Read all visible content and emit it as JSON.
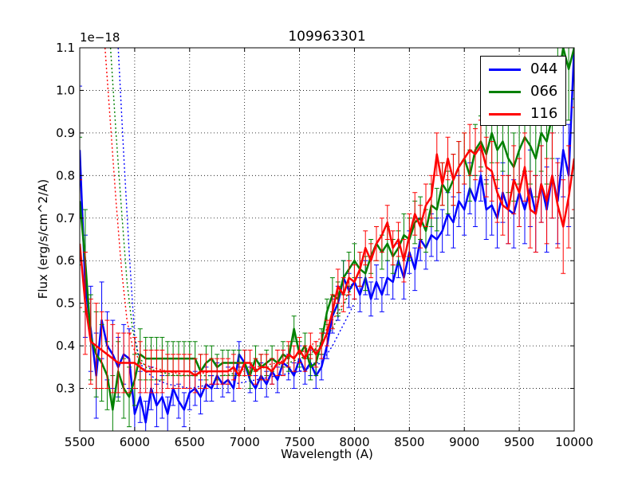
{
  "chart_data": {
    "type": "line",
    "title": "109963301",
    "xlabel": "Wavelength (A)",
    "ylabel": "Flux (erg/s/cm^2/A)",
    "y_offset_label": "1e−18",
    "xlim": [
      5500,
      10000
    ],
    "ylim": [
      0.2,
      1.1
    ],
    "x_ticks": [
      "5500",
      "6000",
      "6500",
      "7000",
      "7500",
      "8000",
      "8500",
      "9000",
      "9500",
      "10000"
    ],
    "y_ticks": [
      "0.3",
      "0.4",
      "0.5",
      "0.6",
      "0.7",
      "0.8",
      "0.9",
      "1.0",
      "1.1"
    ],
    "grid": true,
    "legend_position": "top-right",
    "series": [
      {
        "name": "044",
        "color": "#0000ff",
        "x": [
          5500,
          5550,
          5600,
          5650,
          5700,
          5750,
          5800,
          5850,
          5900,
          5950,
          6000,
          6050,
          6100,
          6150,
          6200,
          6250,
          6300,
          6350,
          6400,
          6450,
          6500,
          6550,
          6600,
          6650,
          6700,
          6750,
          6800,
          6850,
          6900,
          6950,
          7000,
          7050,
          7100,
          7150,
          7200,
          7250,
          7300,
          7350,
          7400,
          7450,
          7500,
          7550,
          7600,
          7650,
          7700,
          7750,
          7800,
          7850,
          7900,
          7950,
          8000,
          8050,
          8100,
          8150,
          8200,
          8250,
          8300,
          8350,
          8400,
          8450,
          8500,
          8550,
          8600,
          8650,
          8700,
          8750,
          8800,
          8850,
          8900,
          8950,
          9000,
          9050,
          9100,
          9150,
          9200,
          9250,
          9300,
          9350,
          9400,
          9450,
          9500,
          9550,
          9600,
          9650,
          9700,
          9750,
          9800,
          9850,
          9900,
          9950,
          10000
        ],
        "values": [
          0.86,
          0.54,
          0.44,
          0.33,
          0.46,
          0.4,
          0.38,
          0.35,
          0.38,
          0.37,
          0.24,
          0.28,
          0.22,
          0.3,
          0.26,
          0.28,
          0.24,
          0.3,
          0.27,
          0.25,
          0.29,
          0.3,
          0.28,
          0.31,
          0.3,
          0.33,
          0.31,
          0.32,
          0.3,
          0.38,
          0.36,
          0.32,
          0.3,
          0.33,
          0.31,
          0.34,
          0.32,
          0.36,
          0.35,
          0.33,
          0.37,
          0.34,
          0.36,
          0.33,
          0.35,
          0.4,
          0.47,
          0.5,
          0.56,
          0.53,
          0.55,
          0.52,
          0.56,
          0.51,
          0.55,
          0.52,
          0.56,
          0.55,
          0.6,
          0.56,
          0.62,
          0.58,
          0.65,
          0.63,
          0.66,
          0.65,
          0.67,
          0.71,
          0.69,
          0.74,
          0.72,
          0.77,
          0.74,
          0.8,
          0.72,
          0.73,
          0.7,
          0.76,
          0.72,
          0.71,
          0.76,
          0.72,
          0.77,
          0.71,
          0.78,
          0.72,
          0.8,
          0.74,
          0.86,
          0.8,
          1.1
        ],
        "errors": [
          0.15,
          0.12,
          0.1,
          0.1,
          0.09,
          0.08,
          0.08,
          0.07,
          0.07,
          0.07,
          0.06,
          0.06,
          0.05,
          0.05,
          0.05,
          0.05,
          0.04,
          0.04,
          0.04,
          0.04,
          0.04,
          0.04,
          0.04,
          0.04,
          0.03,
          0.03,
          0.03,
          0.03,
          0.03,
          0.03,
          0.03,
          0.03,
          0.03,
          0.03,
          0.03,
          0.03,
          0.03,
          0.03,
          0.03,
          0.03,
          0.03,
          0.03,
          0.03,
          0.03,
          0.03,
          0.03,
          0.04,
          0.04,
          0.04,
          0.04,
          0.04,
          0.04,
          0.04,
          0.04,
          0.04,
          0.04,
          0.04,
          0.04,
          0.04,
          0.05,
          0.05,
          0.05,
          0.05,
          0.05,
          0.05,
          0.05,
          0.05,
          0.05,
          0.06,
          0.06,
          0.06,
          0.06,
          0.06,
          0.06,
          0.07,
          0.07,
          0.07,
          0.07,
          0.08,
          0.08,
          0.08,
          0.08,
          0.09,
          0.09,
          0.09,
          0.1,
          0.1,
          0.1,
          0.11,
          0.12,
          0.12
        ],
        "model_line": {
          "x": [
            5850,
            5900,
            5950,
            6000,
            6050,
            6100,
            6150,
            6200,
            6300,
            6500,
            6700,
            6900,
            7100,
            7300,
            7500,
            7700,
            7800,
            7900,
            8000
          ],
          "values": [
            1.1,
            0.85,
            0.62,
            0.42,
            0.36,
            0.34,
            0.33,
            0.32,
            0.31,
            0.3,
            0.31,
            0.31,
            0.32,
            0.33,
            0.34,
            0.36,
            0.4,
            0.45,
            0.5
          ]
        }
      },
      {
        "name": "066",
        "color": "#008000",
        "x": [
          5500,
          5550,
          5600,
          5650,
          5700,
          5750,
          5800,
          5850,
          5900,
          5950,
          6000,
          6050,
          6100,
          6150,
          6200,
          6250,
          6300,
          6350,
          6400,
          6450,
          6500,
          6550,
          6600,
          6650,
          6700,
          6750,
          6800,
          6850,
          6900,
          6950,
          7000,
          7050,
          7100,
          7150,
          7200,
          7250,
          7300,
          7350,
          7400,
          7450,
          7500,
          7550,
          7600,
          7650,
          7700,
          7750,
          7800,
          7850,
          7900,
          7950,
          8000,
          8050,
          8100,
          8150,
          8200,
          8250,
          8300,
          8350,
          8400,
          8450,
          8500,
          8550,
          8600,
          8650,
          8700,
          8750,
          8800,
          8850,
          8900,
          8950,
          9000,
          9050,
          9100,
          9150,
          9200,
          9250,
          9300,
          9350,
          9400,
          9450,
          9500,
          9550,
          9600,
          9650,
          9700,
          9750,
          9800,
          9850,
          9900,
          9950,
          10000
        ],
        "values": [
          0.74,
          0.6,
          0.42,
          0.38,
          0.36,
          0.33,
          0.25,
          0.34,
          0.3,
          0.28,
          0.32,
          0.38,
          0.37,
          0.37,
          0.37,
          0.37,
          0.37,
          0.37,
          0.37,
          0.37,
          0.37,
          0.37,
          0.34,
          0.36,
          0.37,
          0.35,
          0.36,
          0.36,
          0.36,
          0.36,
          0.36,
          0.33,
          0.37,
          0.35,
          0.36,
          0.37,
          0.36,
          0.38,
          0.37,
          0.44,
          0.38,
          0.4,
          0.35,
          0.36,
          0.41,
          0.48,
          0.52,
          0.51,
          0.56,
          0.58,
          0.6,
          0.58,
          0.57,
          0.61,
          0.64,
          0.62,
          0.64,
          0.61,
          0.63,
          0.66,
          0.65,
          0.69,
          0.7,
          0.67,
          0.73,
          0.72,
          0.78,
          0.76,
          0.79,
          0.82,
          0.84,
          0.8,
          0.86,
          0.88,
          0.85,
          0.9,
          0.86,
          0.88,
          0.84,
          0.82,
          0.86,
          0.89,
          0.87,
          0.84,
          0.9,
          0.88,
          0.94,
          1.02,
          1.1,
          1.05,
          1.1
        ],
        "errors": [
          0.15,
          0.12,
          0.1,
          0.1,
          0.09,
          0.08,
          0.08,
          0.07,
          0.07,
          0.07,
          0.06,
          0.06,
          0.05,
          0.05,
          0.05,
          0.05,
          0.04,
          0.04,
          0.04,
          0.04,
          0.04,
          0.04,
          0.04,
          0.04,
          0.03,
          0.03,
          0.03,
          0.03,
          0.03,
          0.03,
          0.03,
          0.03,
          0.03,
          0.03,
          0.03,
          0.03,
          0.03,
          0.03,
          0.03,
          0.03,
          0.03,
          0.03,
          0.03,
          0.03,
          0.03,
          0.03,
          0.04,
          0.04,
          0.04,
          0.04,
          0.04,
          0.04,
          0.04,
          0.04,
          0.04,
          0.04,
          0.04,
          0.04,
          0.04,
          0.05,
          0.05,
          0.05,
          0.05,
          0.05,
          0.05,
          0.05,
          0.05,
          0.05,
          0.06,
          0.06,
          0.06,
          0.06,
          0.06,
          0.06,
          0.07,
          0.07,
          0.07,
          0.07,
          0.08,
          0.08,
          0.08,
          0.08,
          0.09,
          0.09,
          0.09,
          0.1,
          0.1,
          0.1,
          0.11,
          0.12,
          0.12
        ],
        "model_line": {
          "x": [
            5780,
            5830,
            5880,
            5930,
            5980,
            6030,
            6100,
            6200,
            6400,
            6600,
            6800,
            7000,
            7200,
            7400,
            7600,
            7800,
            8000
          ],
          "values": [
            1.1,
            0.9,
            0.72,
            0.55,
            0.44,
            0.38,
            0.35,
            0.34,
            0.33,
            0.33,
            0.33,
            0.34,
            0.35,
            0.36,
            0.38,
            0.44,
            0.55
          ]
        }
      },
      {
        "name": "116",
        "color": "#ff0000",
        "x": [
          5500,
          5550,
          5600,
          5650,
          5700,
          5750,
          5800,
          5850,
          5900,
          5950,
          6000,
          6050,
          6100,
          6150,
          6200,
          6250,
          6300,
          6350,
          6400,
          6450,
          6500,
          6550,
          6600,
          6650,
          6700,
          6750,
          6800,
          6850,
          6900,
          6950,
          7000,
          7050,
          7100,
          7150,
          7200,
          7250,
          7300,
          7350,
          7400,
          7450,
          7500,
          7550,
          7600,
          7650,
          7700,
          7750,
          7800,
          7850,
          7900,
          7950,
          8000,
          8050,
          8100,
          8150,
          8200,
          8250,
          8300,
          8350,
          8400,
          8450,
          8500,
          8550,
          8600,
          8650,
          8700,
          8750,
          8800,
          8850,
          8900,
          8950,
          9000,
          9050,
          9100,
          9150,
          9200,
          9250,
          9300,
          9350,
          9400,
          9450,
          9500,
          9550,
          9600,
          9650,
          9700,
          9750,
          9800,
          9850,
          9900,
          9950,
          10000
        ],
        "values": [
          0.64,
          0.5,
          0.41,
          0.4,
          0.39,
          0.38,
          0.37,
          0.36,
          0.36,
          0.36,
          0.36,
          0.35,
          0.34,
          0.34,
          0.34,
          0.34,
          0.34,
          0.34,
          0.34,
          0.34,
          0.34,
          0.33,
          0.34,
          0.34,
          0.34,
          0.34,
          0.34,
          0.34,
          0.35,
          0.33,
          0.36,
          0.36,
          0.34,
          0.35,
          0.35,
          0.34,
          0.36,
          0.36,
          0.38,
          0.37,
          0.39,
          0.37,
          0.4,
          0.38,
          0.4,
          0.43,
          0.48,
          0.54,
          0.52,
          0.56,
          0.55,
          0.58,
          0.63,
          0.6,
          0.64,
          0.66,
          0.69,
          0.63,
          0.65,
          0.6,
          0.66,
          0.71,
          0.68,
          0.73,
          0.75,
          0.85,
          0.78,
          0.84,
          0.79,
          0.82,
          0.84,
          0.86,
          0.85,
          0.87,
          0.82,
          0.81,
          0.76,
          0.73,
          0.72,
          0.79,
          0.76,
          0.82,
          0.72,
          0.71,
          0.78,
          0.74,
          0.8,
          0.73,
          0.68,
          0.75,
          0.84
        ],
        "errors": [
          0.15,
          0.12,
          0.1,
          0.1,
          0.09,
          0.08,
          0.08,
          0.07,
          0.07,
          0.07,
          0.06,
          0.06,
          0.05,
          0.05,
          0.05,
          0.05,
          0.04,
          0.04,
          0.04,
          0.04,
          0.04,
          0.04,
          0.04,
          0.04,
          0.03,
          0.03,
          0.03,
          0.03,
          0.03,
          0.03,
          0.03,
          0.03,
          0.03,
          0.03,
          0.03,
          0.03,
          0.03,
          0.03,
          0.03,
          0.03,
          0.03,
          0.03,
          0.03,
          0.03,
          0.03,
          0.03,
          0.04,
          0.04,
          0.04,
          0.04,
          0.04,
          0.04,
          0.04,
          0.04,
          0.04,
          0.04,
          0.04,
          0.04,
          0.04,
          0.05,
          0.05,
          0.05,
          0.05,
          0.05,
          0.05,
          0.05,
          0.05,
          0.05,
          0.06,
          0.06,
          0.06,
          0.06,
          0.06,
          0.06,
          0.07,
          0.07,
          0.07,
          0.07,
          0.08,
          0.08,
          0.08,
          0.08,
          0.09,
          0.09,
          0.09,
          0.1,
          0.1,
          0.1,
          0.11,
          0.12,
          0.12
        ],
        "model_line": {
          "x": [
            5730,
            5780,
            5830,
            5880,
            5930,
            5980,
            6050,
            6150,
            6300,
            6500,
            6700,
            6900,
            7100,
            7300,
            7500,
            7700,
            7900,
            8000
          ],
          "values": [
            1.1,
            0.92,
            0.74,
            0.58,
            0.46,
            0.4,
            0.36,
            0.35,
            0.34,
            0.33,
            0.34,
            0.34,
            0.35,
            0.36,
            0.38,
            0.42,
            0.5,
            0.56
          ]
        }
      }
    ]
  }
}
